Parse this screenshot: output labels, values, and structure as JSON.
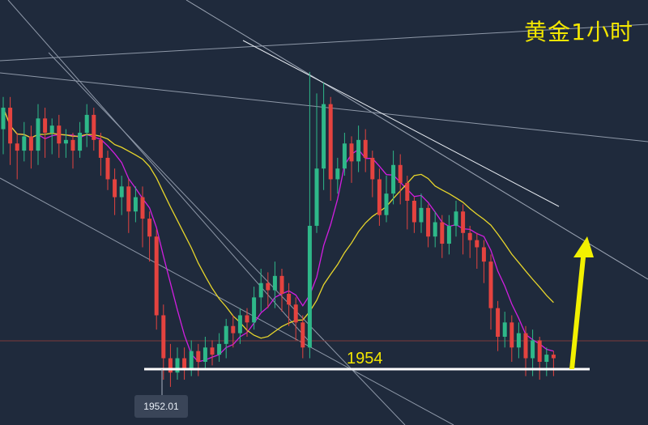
{
  "chart_data": {
    "type": "candlestick",
    "title": "黄金1小时",
    "annotations": {
      "support_level_label": "1954",
      "price_tag_label": "1952.01"
    },
    "colors": {
      "background": "#1f2a3c",
      "up": "#2eb889",
      "down": "#e4433f",
      "ma_fast": "#d21ee0",
      "ma_slow": "#e8d62b",
      "title": "#f2e600",
      "arrow": "#f2f000"
    },
    "price_axis": {
      "min": 1945,
      "max": 2040
    },
    "candles": [
      [
        2022,
        2028,
        2015,
        2031
      ],
      [
        2028,
        2018,
        2012,
        2031
      ],
      [
        2018,
        2016,
        2008,
        2021
      ],
      [
        2016,
        2020,
        2013,
        2024
      ],
      [
        2020,
        2016,
        2011,
        2023
      ],
      [
        2016,
        2025,
        2012,
        2029
      ],
      [
        2025,
        2021,
        2014,
        2028
      ],
      [
        2021,
        2023,
        2015,
        2025
      ],
      [
        2023,
        2018,
        2014,
        2026
      ],
      [
        2018,
        2019,
        2014,
        2022
      ],
      [
        2019,
        2016,
        2011,
        2021
      ],
      [
        2016,
        2021,
        2014,
        2024
      ],
      [
        2021,
        2026,
        2017,
        2029
      ],
      [
        2026,
        2019,
        2016,
        2028
      ],
      [
        2019,
        2014,
        2009,
        2021
      ],
      [
        2014,
        2008,
        2005,
        2016
      ],
      [
        2008,
        2003,
        1998,
        2011
      ],
      [
        2003,
        2006,
        1998,
        2009
      ],
      [
        2006,
        1999,
        1993,
        2008
      ],
      [
        1999,
        2003,
        1996,
        2006
      ],
      [
        2003,
        1997,
        1989,
        2006
      ],
      [
        1997,
        1992,
        1985,
        1999
      ],
      [
        1992,
        1970,
        1966,
        1994
      ],
      [
        1970,
        1958,
        1952,
        1973
      ],
      [
        1958,
        1954,
        1950,
        1962
      ],
      [
        1954,
        1958,
        1952,
        1961
      ],
      [
        1958,
        1955,
        1952,
        1961
      ],
      [
        1955,
        1960,
        1953,
        1963
      ],
      [
        1960,
        1957,
        1953,
        1962
      ],
      [
        1957,
        1961,
        1955,
        1964
      ],
      [
        1961,
        1959,
        1956,
        1963
      ],
      [
        1959,
        1962,
        1957,
        1965
      ],
      [
        1962,
        1967,
        1958,
        1969
      ],
      [
        1967,
        1965,
        1961,
        1970
      ],
      [
        1965,
        1970,
        1962,
        1972
      ],
      [
        1970,
        1968,
        1964,
        1972
      ],
      [
        1968,
        1975,
        1966,
        1978
      ],
      [
        1975,
        1979,
        1971,
        1983
      ],
      [
        1979,
        1977,
        1972,
        1982
      ],
      [
        1977,
        1981,
        1972,
        1985
      ],
      [
        1981,
        1976,
        1971,
        1983
      ],
      [
        1976,
        1973,
        1967,
        1979
      ],
      [
        1973,
        1968,
        1963,
        1975
      ],
      [
        1968,
        1961,
        1958,
        1970
      ],
      [
        1961,
        1995,
        1958,
        2038
      ],
      [
        1995,
        2011,
        1993,
        2032
      ],
      [
        2011,
        2029,
        2005,
        2035
      ],
      [
        2029,
        2008,
        2002,
        2031
      ],
      [
        2008,
        2011,
        2004,
        2014
      ],
      [
        2011,
        2018,
        2009,
        2021
      ],
      [
        2018,
        2013,
        2007,
        2020
      ],
      [
        2013,
        2019,
        2010,
        2023
      ],
      [
        2019,
        2014,
        2010,
        2022
      ],
      [
        2014,
        2008,
        2003,
        2016
      ],
      [
        2008,
        1998,
        1995,
        2011
      ],
      [
        1998,
        2004,
        1996,
        2009
      ],
      [
        2004,
        2012,
        2001,
        2016
      ],
      [
        2012,
        2007,
        2001,
        2015
      ],
      [
        2007,
        2002,
        1994,
        2009
      ],
      [
        2002,
        1996,
        1993,
        2003
      ],
      [
        1996,
        2000,
        1993,
        2004
      ],
      [
        2000,
        1992,
        1989,
        2001
      ],
      [
        1992,
        1996,
        1989,
        1999
      ],
      [
        1996,
        1990,
        1986,
        1998
      ],
      [
        1990,
        1995,
        1987,
        1998
      ],
      [
        1995,
        1999,
        1992,
        2002
      ],
      [
        1999,
        1993,
        1987,
        2001
      ],
      [
        1993,
        1991,
        1986,
        1995
      ],
      [
        1991,
        1989,
        1983,
        1993
      ],
      [
        1989,
        1985,
        1979,
        1991
      ],
      [
        1985,
        1972,
        1966,
        1987
      ],
      [
        1972,
        1964,
        1960,
        1974
      ],
      [
        1964,
        1968,
        1961,
        1971
      ],
      [
        1968,
        1961,
        1957,
        1970
      ],
      [
        1961,
        1965,
        1958,
        1968
      ],
      [
        1965,
        1958,
        1953,
        1967
      ],
      [
        1958,
        1963,
        1953,
        1966
      ],
      [
        1963,
        1957,
        1952,
        1964
      ],
      [
        1957,
        1959,
        1953,
        1961
      ],
      [
        1959,
        1958,
        1953,
        1960
      ]
    ]
  }
}
